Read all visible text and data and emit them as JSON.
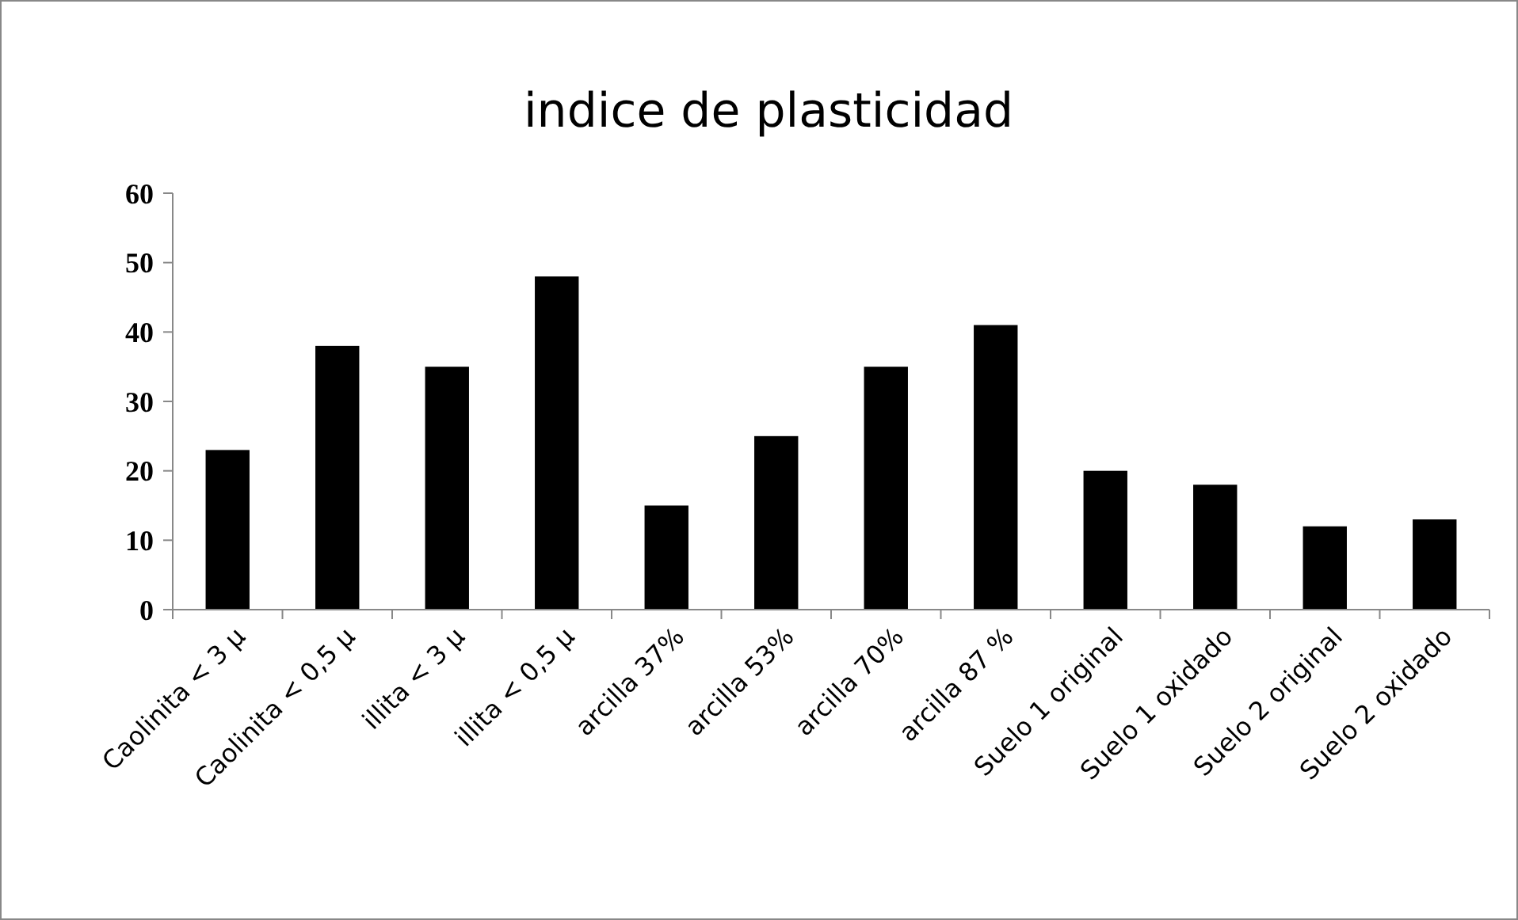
{
  "chart_data": {
    "type": "bar",
    "title": "indice de plasticidad",
    "categories": [
      "Caolinita < 3 µ",
      "Caolinita < 0,5 µ",
      "illita < 3 µ",
      "illita < 0,5 µ",
      "arcilla 37%",
      "arcilla 53%",
      "arcilla 70%",
      "arcilla 87 %",
      "Suelo 1 original",
      "Suelo 1 oxidado",
      "Suelo 2 original",
      "Suelo 2 oxidado"
    ],
    "values": [
      23,
      38,
      35,
      48,
      15,
      25,
      35,
      41,
      20,
      18,
      12,
      13
    ],
    "color": "#000000",
    "ylim": [
      0,
      60
    ],
    "yticks": [
      0,
      10,
      20,
      30,
      40,
      50,
      60
    ],
    "grid": false
  }
}
